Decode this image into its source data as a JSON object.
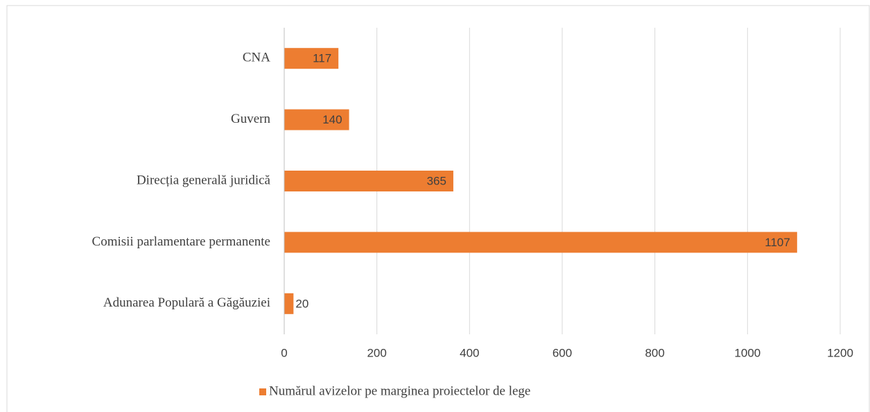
{
  "chart_data": {
    "type": "bar",
    "orientation": "horizontal",
    "categories": [
      "CNA",
      "Guvern",
      "Direcția generală juridică",
      "Comisii parlamentare permanente",
      "Adunarea Populară a Găgăuziei"
    ],
    "series": [
      {
        "name": "Numărul avizelor pe marginea proiectelor de lege",
        "color": "#ed7d31",
        "values": [
          117,
          140,
          365,
          1107,
          20
        ]
      }
    ],
    "xlim": [
      0,
      1200
    ],
    "xticks": [
      0,
      200,
      400,
      600,
      800,
      1000,
      1200
    ],
    "grid": true,
    "legend": "bottom"
  }
}
